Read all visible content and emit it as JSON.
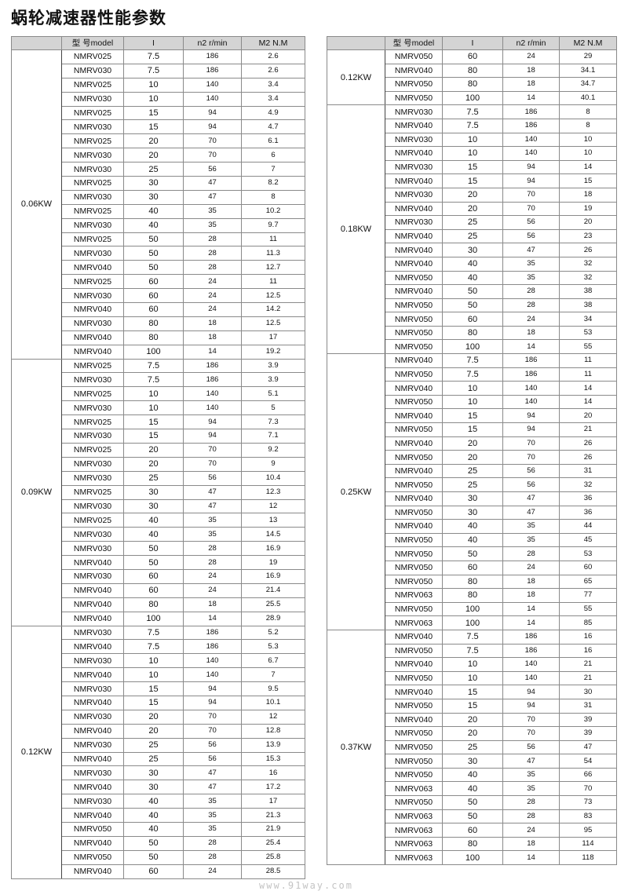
{
  "title": "蜗轮减速器性能参数",
  "headers": [
    "",
    "型 号model",
    "I",
    "n2 r/min",
    "M2 N.M"
  ],
  "watermark": "www.91way.com",
  "left_table": [
    {
      "power": "0.06KW",
      "rows": [
        [
          "NMRV025",
          "7.5",
          "186",
          "2.6"
        ],
        [
          "NMRV030",
          "7.5",
          "186",
          "2.6"
        ],
        [
          "NMRV025",
          "10",
          "140",
          "3.4"
        ],
        [
          "NMRV030",
          "10",
          "140",
          "3.4"
        ],
        [
          "NMRV025",
          "15",
          "94",
          "4.9"
        ],
        [
          "NMRV030",
          "15",
          "94",
          "4.7"
        ],
        [
          "NMRV025",
          "20",
          "70",
          "6.1"
        ],
        [
          "NMRV030",
          "20",
          "70",
          "6"
        ],
        [
          "NMRV030",
          "25",
          "56",
          "7"
        ],
        [
          "NMRV025",
          "30",
          "47",
          "8.2"
        ],
        [
          "NMRV030",
          "30",
          "47",
          "8"
        ],
        [
          "NMRV025",
          "40",
          "35",
          "10.2"
        ],
        [
          "NMRV030",
          "40",
          "35",
          "9.7"
        ],
        [
          "NMRV025",
          "50",
          "28",
          "11"
        ],
        [
          "NMRV030",
          "50",
          "28",
          "11.3"
        ],
        [
          "NMRV040",
          "50",
          "28",
          "12.7"
        ],
        [
          "NMRV025",
          "60",
          "24",
          "11"
        ],
        [
          "NMRV030",
          "60",
          "24",
          "12.5"
        ],
        [
          "NMRV040",
          "60",
          "24",
          "14.2"
        ],
        [
          "NMRV030",
          "80",
          "18",
          "12.5"
        ],
        [
          "NMRV040",
          "80",
          "18",
          "17"
        ],
        [
          "NMRV040",
          "100",
          "14",
          "19.2"
        ]
      ]
    },
    {
      "power": "0.09KW",
      "rows": [
        [
          "NMRV025",
          "7.5",
          "186",
          "3.9"
        ],
        [
          "NMRV030",
          "7.5",
          "186",
          "3.9"
        ],
        [
          "NMRV025",
          "10",
          "140",
          "5.1"
        ],
        [
          "NMRV030",
          "10",
          "140",
          "5"
        ],
        [
          "NMRV025",
          "15",
          "94",
          "7.3"
        ],
        [
          "NMRV030",
          "15",
          "94",
          "7.1"
        ],
        [
          "NMRV025",
          "20",
          "70",
          "9.2"
        ],
        [
          "NMRV030",
          "20",
          "70",
          "9"
        ],
        [
          "NMRV030",
          "25",
          "56",
          "10.4"
        ],
        [
          "NMRV025",
          "30",
          "47",
          "12.3"
        ],
        [
          "NMRV030",
          "30",
          "47",
          "12"
        ],
        [
          "NMRV025",
          "40",
          "35",
          "13"
        ],
        [
          "NMRV030",
          "40",
          "35",
          "14.5"
        ],
        [
          "NMRV030",
          "50",
          "28",
          "16.9"
        ],
        [
          "NMRV040",
          "50",
          "28",
          "19"
        ],
        [
          "NMRV030",
          "60",
          "24",
          "16.9"
        ],
        [
          "NMRV040",
          "60",
          "24",
          "21.4"
        ],
        [
          "NMRV040",
          "80",
          "18",
          "25.5"
        ],
        [
          "NMRV040",
          "100",
          "14",
          "28.9"
        ]
      ]
    },
    {
      "power": "0.12KW",
      "rows": [
        [
          "NMRV030",
          "7.5",
          "186",
          "5.2"
        ],
        [
          "NMRV040",
          "7.5",
          "186",
          "5.3"
        ],
        [
          "NMRV030",
          "10",
          "140",
          "6.7"
        ],
        [
          "NMRV040",
          "10",
          "140",
          "7"
        ],
        [
          "NMRV030",
          "15",
          "94",
          "9.5"
        ],
        [
          "NMRV040",
          "15",
          "94",
          "10.1"
        ],
        [
          "NMRV030",
          "20",
          "70",
          "12"
        ],
        [
          "NMRV040",
          "20",
          "70",
          "12.8"
        ],
        [
          "NMRV030",
          "25",
          "56",
          "13.9"
        ],
        [
          "NMRV040",
          "25",
          "56",
          "15.3"
        ],
        [
          "NMRV030",
          "30",
          "47",
          "16"
        ],
        [
          "NMRV040",
          "30",
          "47",
          "17.2"
        ],
        [
          "NMRV030",
          "40",
          "35",
          "17"
        ],
        [
          "NMRV040",
          "40",
          "35",
          "21.3"
        ],
        [
          "NMRV050",
          "40",
          "35",
          "21.9"
        ],
        [
          "NMRV040",
          "50",
          "28",
          "25.4"
        ],
        [
          "NMRV050",
          "50",
          "28",
          "25.8"
        ],
        [
          "NMRV040",
          "60",
          "24",
          "28.5"
        ]
      ]
    }
  ],
  "right_table": [
    {
      "power": "0.12KW",
      "rows": [
        [
          "NMRV050",
          "60",
          "24",
          "29"
        ],
        [
          "NMRV040",
          "80",
          "18",
          "34.1"
        ],
        [
          "NMRV050",
          "80",
          "18",
          "34.7"
        ],
        [
          "NMRV050",
          "100",
          "14",
          "40.1"
        ]
      ]
    },
    {
      "power": "0.18KW",
      "rows": [
        [
          "NMRV030",
          "7.5",
          "186",
          "8"
        ],
        [
          "NMRV040",
          "7.5",
          "186",
          "8"
        ],
        [
          "NMRV030",
          "10",
          "140",
          "10"
        ],
        [
          "NMRV040",
          "10",
          "140",
          "10"
        ],
        [
          "NMRV030",
          "15",
          "94",
          "14"
        ],
        [
          "NMRV040",
          "15",
          "94",
          "15"
        ],
        [
          "NMRV030",
          "20",
          "70",
          "18"
        ],
        [
          "NMRV040",
          "20",
          "70",
          "19"
        ],
        [
          "NMRV030",
          "25",
          "56",
          "20"
        ],
        [
          "NMRV040",
          "25",
          "56",
          "23"
        ],
        [
          "NMRV040",
          "30",
          "47",
          "26"
        ],
        [
          "NMRV040",
          "40",
          "35",
          "32"
        ],
        [
          "NMRV050",
          "40",
          "35",
          "32"
        ],
        [
          "NMRV040",
          "50",
          "28",
          "38"
        ],
        [
          "NMRV050",
          "50",
          "28",
          "38"
        ],
        [
          "NMRV050",
          "60",
          "24",
          "34"
        ],
        [
          "NMRV050",
          "80",
          "18",
          "53"
        ],
        [
          "NMRV050",
          "100",
          "14",
          "55"
        ]
      ]
    },
    {
      "power": "0.25KW",
      "rows": [
        [
          "NMRV040",
          "7.5",
          "186",
          "11"
        ],
        [
          "NMRV050",
          "7.5",
          "186",
          "11"
        ],
        [
          "NMRV040",
          "10",
          "140",
          "14"
        ],
        [
          "NMRV050",
          "10",
          "140",
          "14"
        ],
        [
          "NMRV040",
          "15",
          "94",
          "20"
        ],
        [
          "NMRV050",
          "15",
          "94",
          "21"
        ],
        [
          "NMRV040",
          "20",
          "70",
          "26"
        ],
        [
          "NMRV050",
          "20",
          "70",
          "26"
        ],
        [
          "NMRV040",
          "25",
          "56",
          "31"
        ],
        [
          "NMRV050",
          "25",
          "56",
          "32"
        ],
        [
          "NMRV040",
          "30",
          "47",
          "36"
        ],
        [
          "NMRV050",
          "30",
          "47",
          "36"
        ],
        [
          "NMRV040",
          "40",
          "35",
          "44"
        ],
        [
          "NMRV050",
          "40",
          "35",
          "45"
        ],
        [
          "NMRV050",
          "50",
          "28",
          "53"
        ],
        [
          "NMRV050",
          "60",
          "24",
          "60"
        ],
        [
          "NMRV050",
          "80",
          "18",
          "65"
        ],
        [
          "NMRV063",
          "80",
          "18",
          "77"
        ],
        [
          "NMRV050",
          "100",
          "14",
          "55"
        ],
        [
          "NMRV063",
          "100",
          "14",
          "85"
        ]
      ]
    },
    {
      "power": "0.37KW",
      "rows": [
        [
          "NMRV040",
          "7.5",
          "186",
          "16"
        ],
        [
          "NMRV050",
          "7.5",
          "186",
          "16"
        ],
        [
          "NMRV040",
          "10",
          "140",
          "21"
        ],
        [
          "NMRV050",
          "10",
          "140",
          "21"
        ],
        [
          "NMRV040",
          "15",
          "94",
          "30"
        ],
        [
          "NMRV050",
          "15",
          "94",
          "31"
        ],
        [
          "NMRV040",
          "20",
          "70",
          "39"
        ],
        [
          "NMRV050",
          "20",
          "70",
          "39"
        ],
        [
          "NMRV050",
          "25",
          "56",
          "47"
        ],
        [
          "NMRV050",
          "30",
          "47",
          "54"
        ],
        [
          "NMRV050",
          "40",
          "35",
          "66"
        ],
        [
          "NMRV063",
          "40",
          "35",
          "70"
        ],
        [
          "NMRV050",
          "50",
          "28",
          "73"
        ],
        [
          "NMRV063",
          "50",
          "28",
          "83"
        ],
        [
          "NMRV063",
          "60",
          "24",
          "95"
        ],
        [
          "NMRV063",
          "80",
          "18",
          "114"
        ],
        [
          "NMRV063",
          "100",
          "14",
          "118"
        ]
      ]
    }
  ]
}
